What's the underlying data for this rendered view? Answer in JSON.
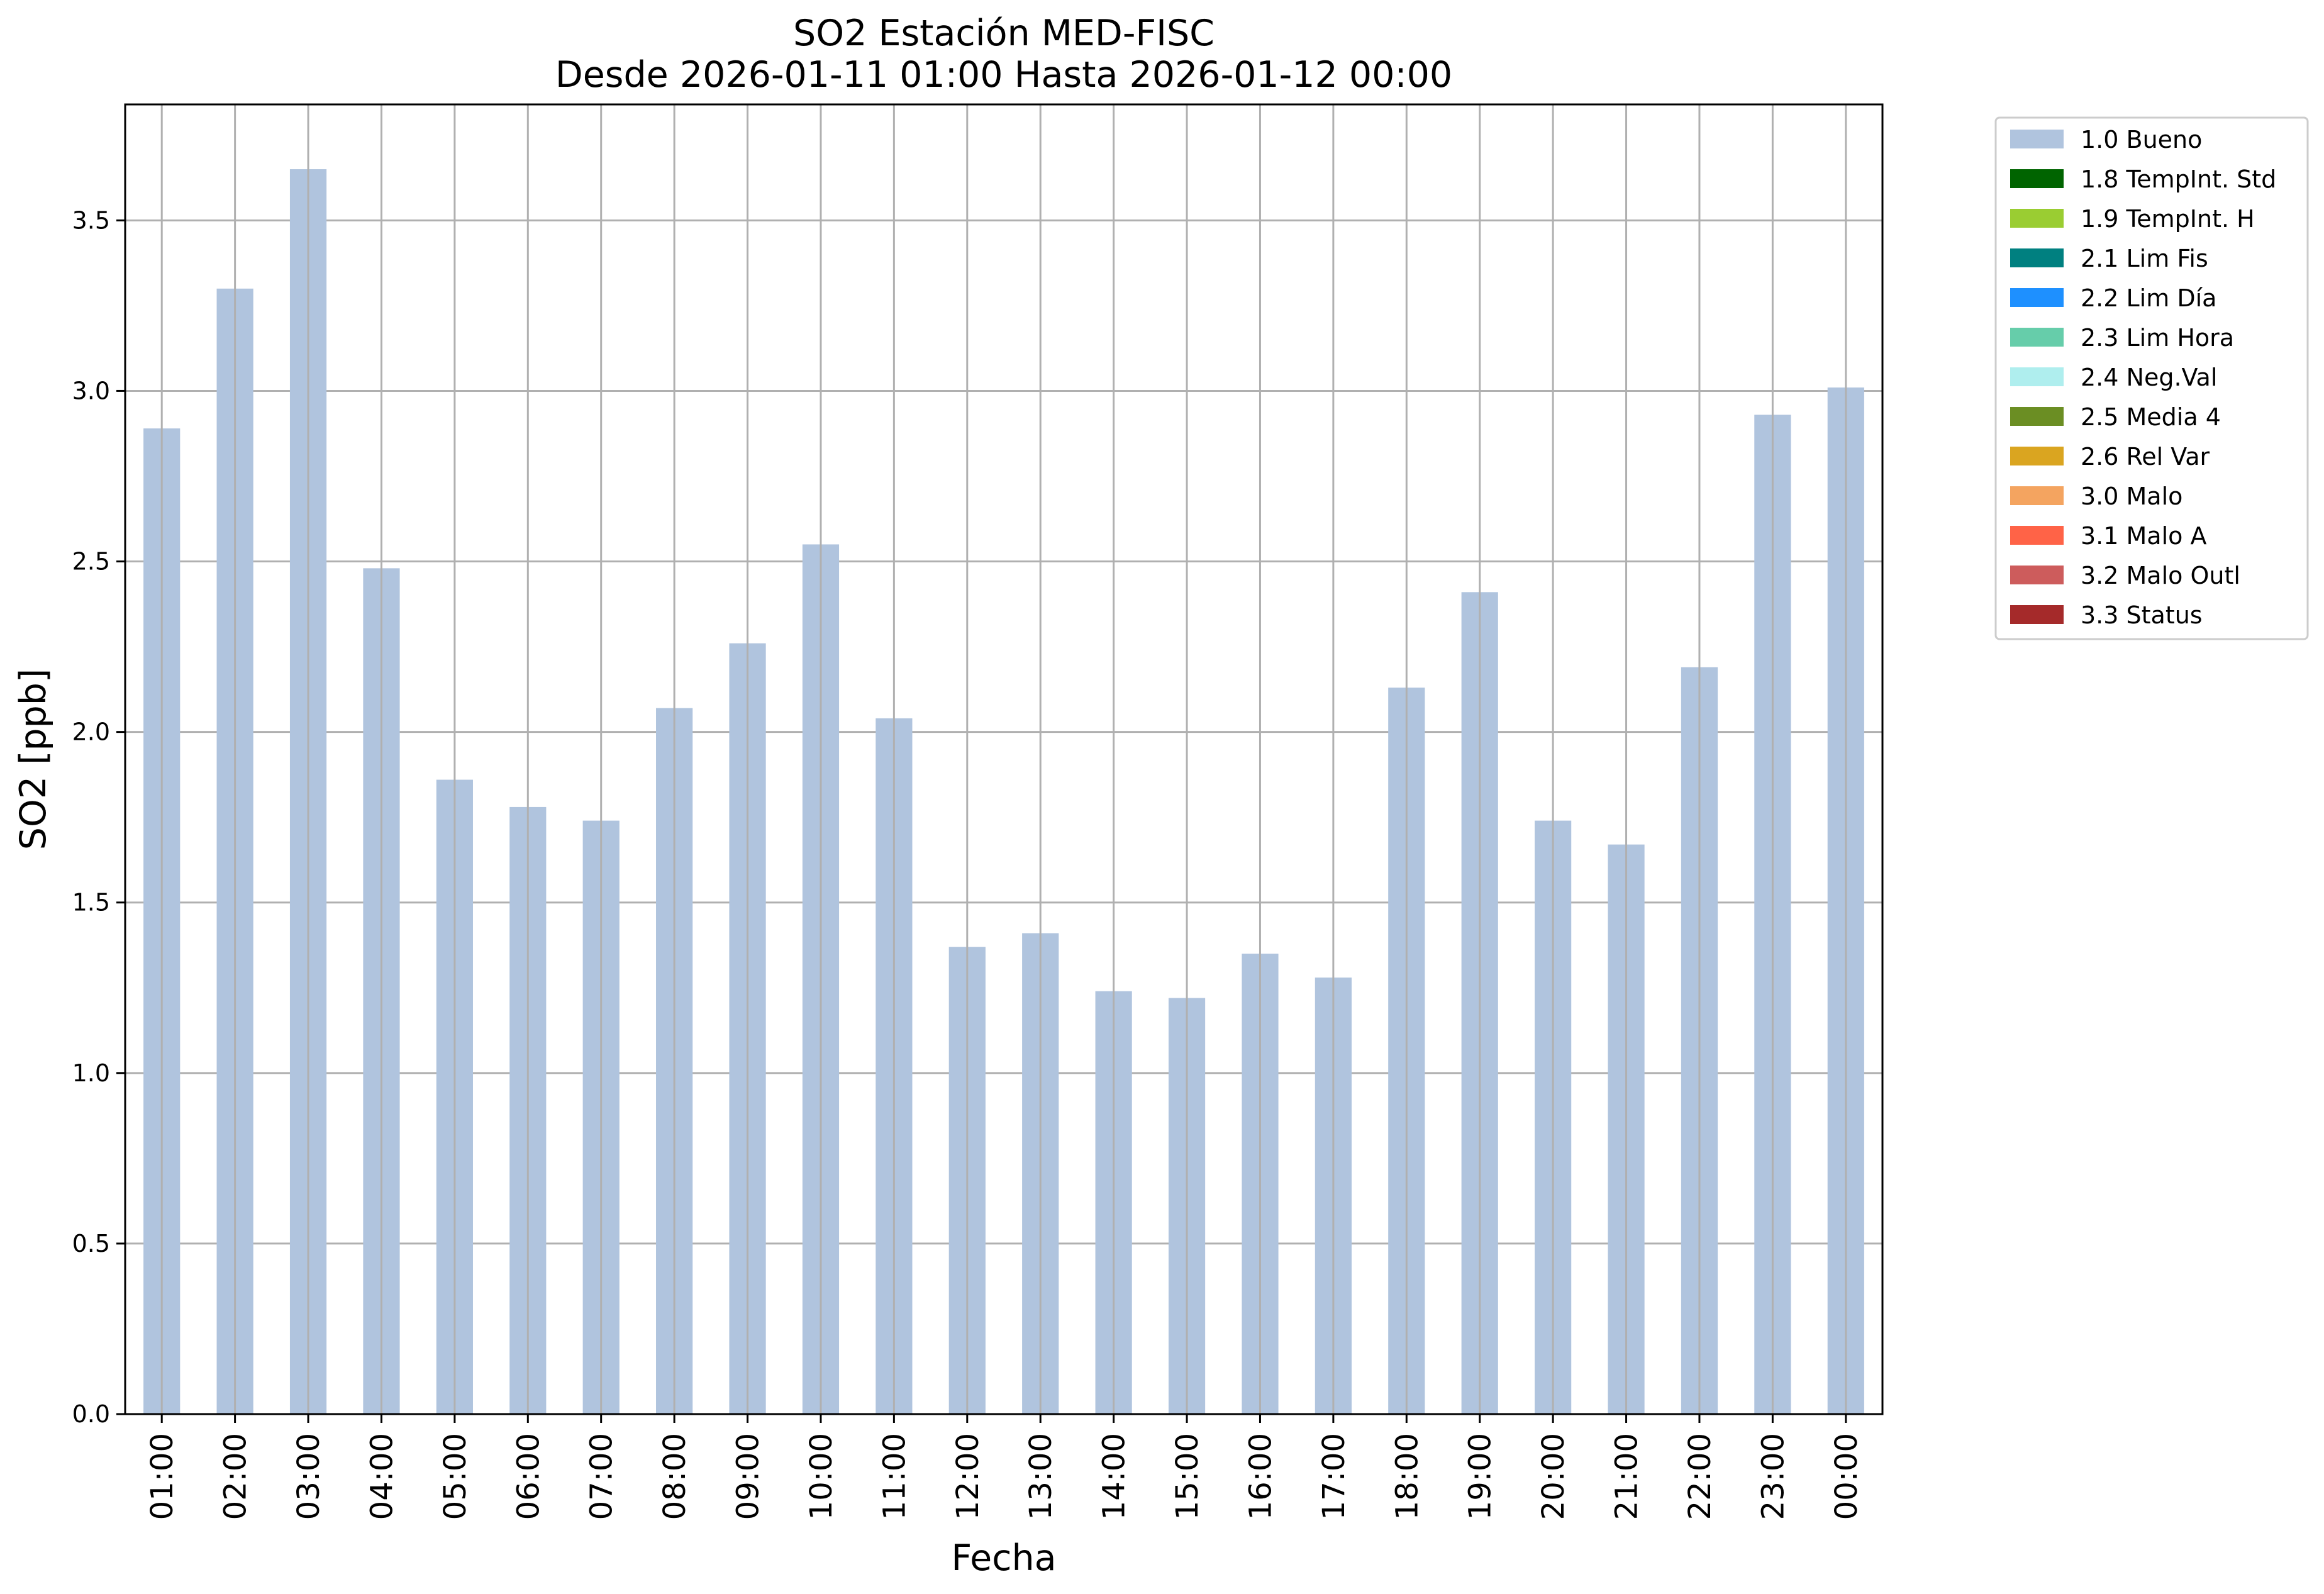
{
  "chart_data": {
    "type": "bar",
    "title": "SO2 Estación MED-FISC",
    "subtitle": "Desde 2026-01-11 01:00 Hasta 2026-01-12 00:00",
    "xlabel": "Fecha",
    "ylabel": "SO2 [ppb]",
    "ylim": [
      0,
      3.84
    ],
    "yticks": [
      "0.0",
      "0.5",
      "1.0",
      "1.5",
      "2.0",
      "2.5",
      "3.0",
      "3.5"
    ],
    "grid": true,
    "legend_position": "outside-top-right",
    "categories": [
      "01:00",
      "02:00",
      "03:00",
      "04:00",
      "05:00",
      "06:00",
      "07:00",
      "08:00",
      "09:00",
      "10:00",
      "11:00",
      "12:00",
      "13:00",
      "14:00",
      "15:00",
      "16:00",
      "17:00",
      "18:00",
      "19:00",
      "20:00",
      "21:00",
      "22:00",
      "23:00",
      "00:00"
    ],
    "series": [
      {
        "name": "1.0 Bueno",
        "color": "#b0c4de",
        "values": [
          2.89,
          3.3,
          3.65,
          2.48,
          1.86,
          1.78,
          1.74,
          2.07,
          2.26,
          2.55,
          2.04,
          1.37,
          1.41,
          1.24,
          1.22,
          1.35,
          1.28,
          2.13,
          2.41,
          1.74,
          1.67,
          2.19,
          2.93,
          3.01
        ]
      }
    ],
    "legend": [
      {
        "label": "1.0 Bueno",
        "color": "#b0c4de"
      },
      {
        "label": "1.8 TempInt. Std",
        "color": "#006400"
      },
      {
        "label": "1.9 TempInt. H",
        "color": "#9acd32"
      },
      {
        "label": "2.1 Lim Fis",
        "color": "#008080"
      },
      {
        "label": "2.2 Lim Día",
        "color": "#1e90ff"
      },
      {
        "label": "2.3 Lim Hora",
        "color": "#66cdaa"
      },
      {
        "label": "2.4 Neg.Val",
        "color": "#afeeee"
      },
      {
        "label": "2.5 Media 4",
        "color": "#6b8e23"
      },
      {
        "label": "2.6 Rel Var",
        "color": "#daa520"
      },
      {
        "label": "3.0 Malo",
        "color": "#f4a460"
      },
      {
        "label": "3.1 Malo A",
        "color": "#ff6347"
      },
      {
        "label": "3.2 Malo Outl",
        "color": "#cd5c5c"
      },
      {
        "label": "3.3 Status",
        "color": "#a52a2a"
      }
    ]
  }
}
